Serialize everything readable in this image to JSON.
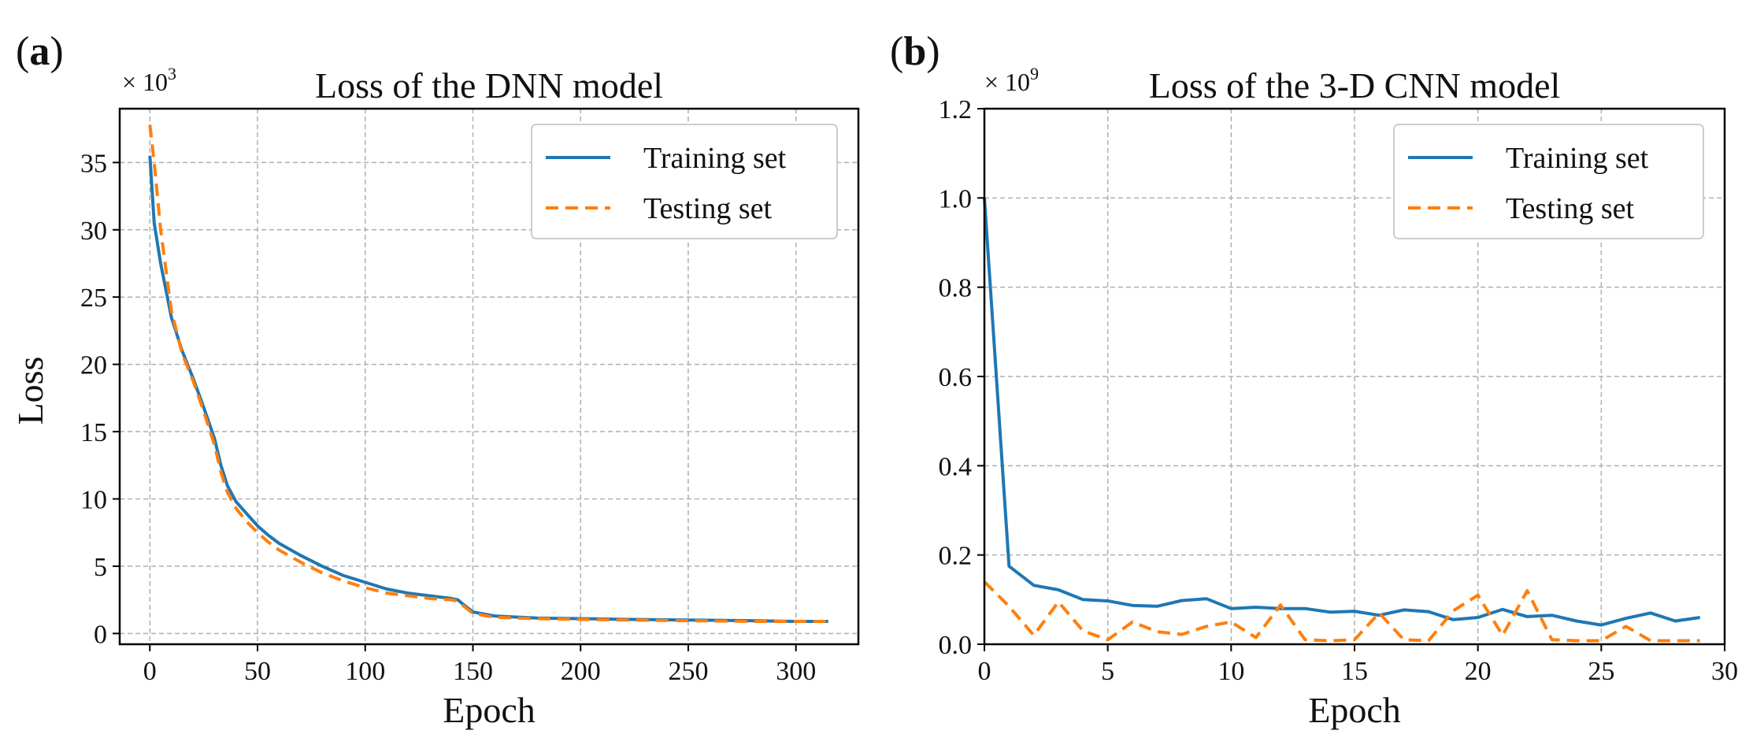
{
  "colors": {
    "train": "#1f77b4",
    "test": "#ff7f0e"
  },
  "chart_data": [
    {
      "type": "line",
      "panel_label": "(a)",
      "panel_letter": "a",
      "title": "Loss of the DNN model",
      "xlabel": "Epoch",
      "ylabel": "Loss",
      "multiplier": "× 10",
      "multiplier_exp": "3",
      "xlim": [
        -14,
        329
      ],
      "ylim": [
        -0.8,
        39
      ],
      "xticks": [
        0,
        50,
        100,
        150,
        200,
        250,
        300
      ],
      "yticks": [
        0,
        5,
        10,
        15,
        20,
        25,
        30,
        35
      ],
      "grid": true,
      "legend_position": "top-right",
      "series": [
        {
          "name": "Training set",
          "style": "solid",
          "x": [
            0,
            2,
            5,
            10,
            15,
            20,
            25,
            30,
            33,
            36,
            40,
            45,
            50,
            55,
            60,
            70,
            80,
            90,
            100,
            110,
            120,
            130,
            140,
            143,
            146,
            150,
            160,
            180,
            200,
            220,
            250,
            280,
            300,
            315
          ],
          "y": [
            35.5,
            30.5,
            27.5,
            23.5,
            21.0,
            19.0,
            16.8,
            14.5,
            12.5,
            11.0,
            9.8,
            8.9,
            8.0,
            7.3,
            6.7,
            5.8,
            5.0,
            4.3,
            3.8,
            3.3,
            3.0,
            2.8,
            2.6,
            2.5,
            2.1,
            1.6,
            1.3,
            1.15,
            1.1,
            1.05,
            1.0,
            0.95,
            0.9,
            0.9
          ]
        },
        {
          "name": "Testing set",
          "style": "dashed",
          "x": [
            0,
            2,
            5,
            10,
            15,
            20,
            25,
            30,
            33,
            36,
            40,
            45,
            50,
            55,
            60,
            70,
            80,
            90,
            100,
            110,
            120,
            130,
            140,
            143,
            146,
            150,
            160,
            180,
            200,
            220,
            250,
            280,
            300,
            315
          ],
          "y": [
            37.8,
            35.0,
            30.0,
            24.0,
            20.8,
            18.8,
            16.5,
            14.0,
            12.0,
            10.5,
            9.3,
            8.3,
            7.5,
            6.8,
            6.2,
            5.3,
            4.5,
            3.9,
            3.4,
            3.0,
            2.8,
            2.6,
            2.5,
            2.4,
            2.0,
            1.5,
            1.2,
            1.1,
            1.05,
            1.0,
            0.95,
            0.9,
            0.9,
            0.9
          ]
        }
      ]
    },
    {
      "type": "line",
      "panel_label": "(b)",
      "panel_letter": "b",
      "title": "Loss of the 3-D CNN model",
      "xlabel": "Epoch",
      "ylabel": "",
      "multiplier": "× 10",
      "multiplier_exp": "9",
      "xlim": [
        0,
        30
      ],
      "ylim": [
        0,
        1.2
      ],
      "xticks": [
        0,
        5,
        10,
        15,
        20,
        25,
        30
      ],
      "yticks": [
        0.0,
        0.2,
        0.4,
        0.6,
        0.8,
        1.0,
        1.2
      ],
      "ytick_labels": [
        "0.0",
        "0.2",
        "0.4",
        "0.6",
        "0.8",
        "1.0",
        "1.2"
      ],
      "grid": true,
      "legend_position": "top-right",
      "series": [
        {
          "name": "Training set",
          "style": "solid",
          "x": [
            0,
            1,
            2,
            3,
            4,
            5,
            6,
            7,
            8,
            9,
            10,
            11,
            12,
            13,
            14,
            15,
            16,
            17,
            18,
            19,
            20,
            21,
            22,
            23,
            24,
            25,
            26,
            27,
            28,
            29
          ],
          "y": [
            1.0,
            0.175,
            0.132,
            0.122,
            0.1,
            0.097,
            0.087,
            0.085,
            0.098,
            0.102,
            0.08,
            0.083,
            0.08,
            0.08,
            0.072,
            0.074,
            0.065,
            0.077,
            0.073,
            0.055,
            0.06,
            0.078,
            0.062,
            0.065,
            0.052,
            0.043,
            0.058,
            0.07,
            0.052,
            0.06
          ]
        },
        {
          "name": "Testing set",
          "style": "dashed",
          "x": [
            0,
            1,
            2,
            3,
            4,
            5,
            6,
            7,
            8,
            9,
            10,
            11,
            12,
            13,
            14,
            15,
            16,
            17,
            18,
            19,
            20,
            21,
            22,
            23,
            24,
            25,
            26,
            27,
            28,
            29
          ],
          "y": [
            0.14,
            0.085,
            0.02,
            0.095,
            0.03,
            0.01,
            0.05,
            0.028,
            0.022,
            0.04,
            0.05,
            0.015,
            0.088,
            0.01,
            0.008,
            0.01,
            0.07,
            0.01,
            0.008,
            0.075,
            0.11,
            0.02,
            0.12,
            0.01,
            0.008,
            0.008,
            0.04,
            0.008,
            0.008,
            0.008
          ]
        }
      ]
    }
  ]
}
